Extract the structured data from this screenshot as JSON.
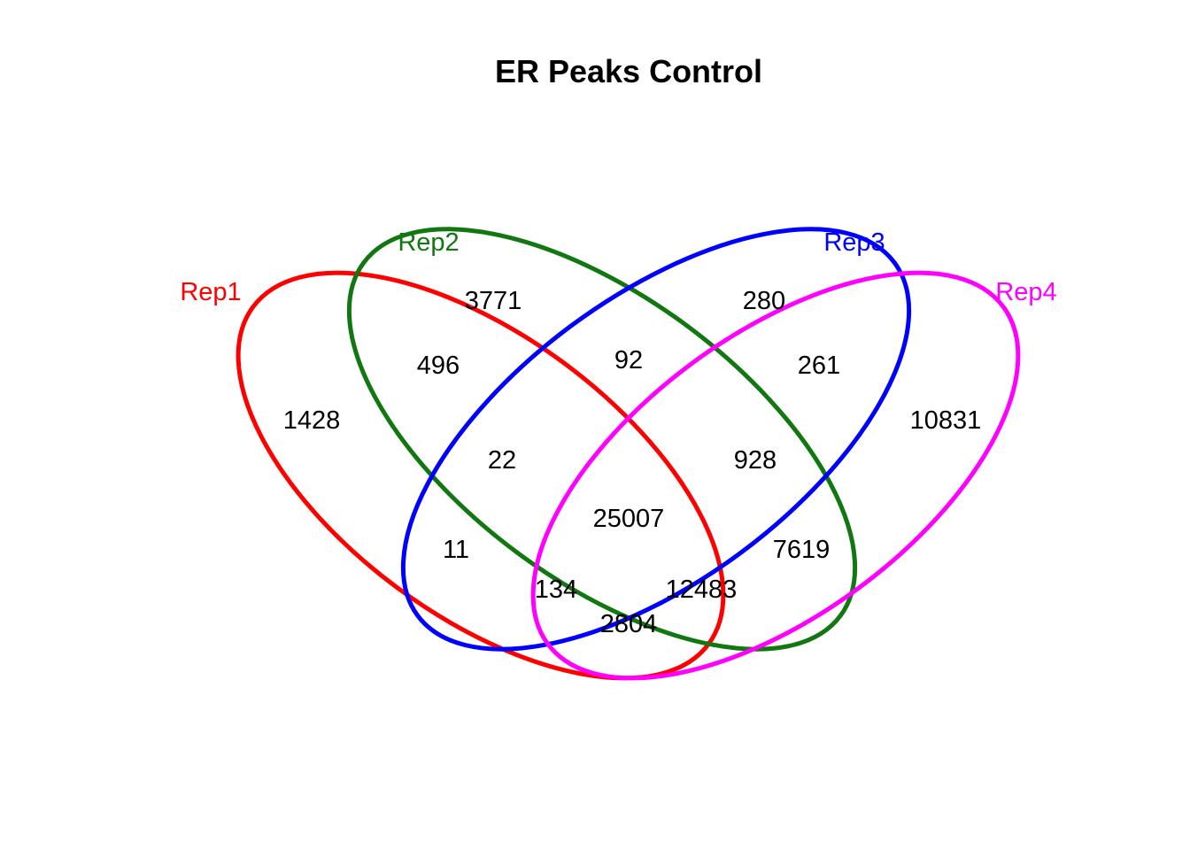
{
  "title": "ER Peaks Control",
  "sets": [
    {
      "name": "Rep1",
      "color": "#ff0000"
    },
    {
      "name": "Rep2",
      "color": "#117711"
    },
    {
      "name": "Rep3",
      "color": "#0000ff"
    },
    {
      "name": "Rep4",
      "color": "#ff00ff"
    }
  ],
  "regions": {
    "rep1_only": "1428",
    "rep2_only": "3771",
    "rep3_only": "280",
    "rep4_only": "10831",
    "rep1_rep2": "496",
    "rep2_rep3": "92",
    "rep3_rep4": "261",
    "rep1_rep2_rep3": "22",
    "rep2_rep3_rep4": "928",
    "all_four": "25007",
    "rep1_rep3": "11",
    "rep2_rep4": "7619",
    "rep1_rep3_rep4": "134",
    "rep1_rep2_rep4": "12483",
    "rep1_rep4": "2804"
  }
}
